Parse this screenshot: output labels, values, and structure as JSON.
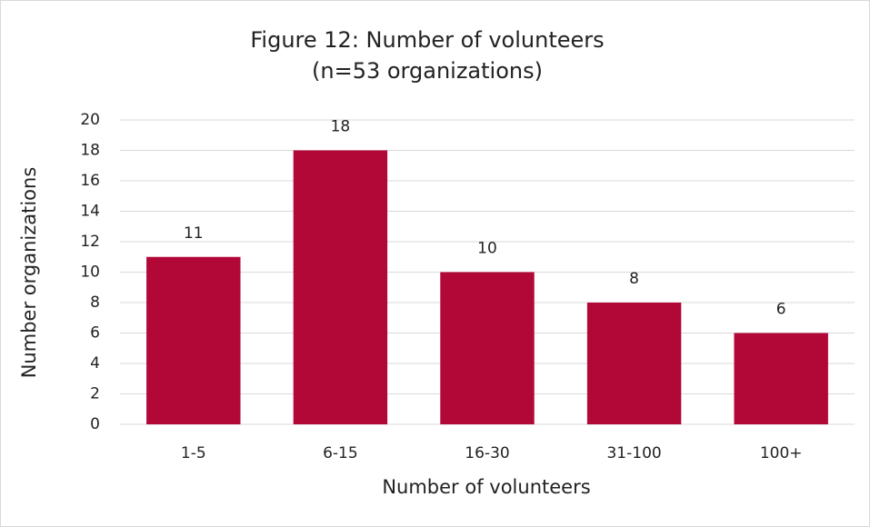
{
  "chart_data": {
    "type": "bar",
    "title": "Figure 12: Number of volunteers",
    "subtitle": "(n=53 organizations)",
    "x_label": "Number of volunteers",
    "y_label": "Number organizations",
    "categories": [
      "1-5",
      "6-15",
      "16-30",
      "31-100",
      "100+"
    ],
    "values": [
      11,
      18,
      10,
      8,
      6
    ],
    "color": "#b20838",
    "ylim": [
      0,
      20
    ],
    "yticks": [
      0,
      2,
      4,
      6,
      8,
      10,
      12,
      14,
      16,
      18,
      20
    ],
    "grid": true
  }
}
